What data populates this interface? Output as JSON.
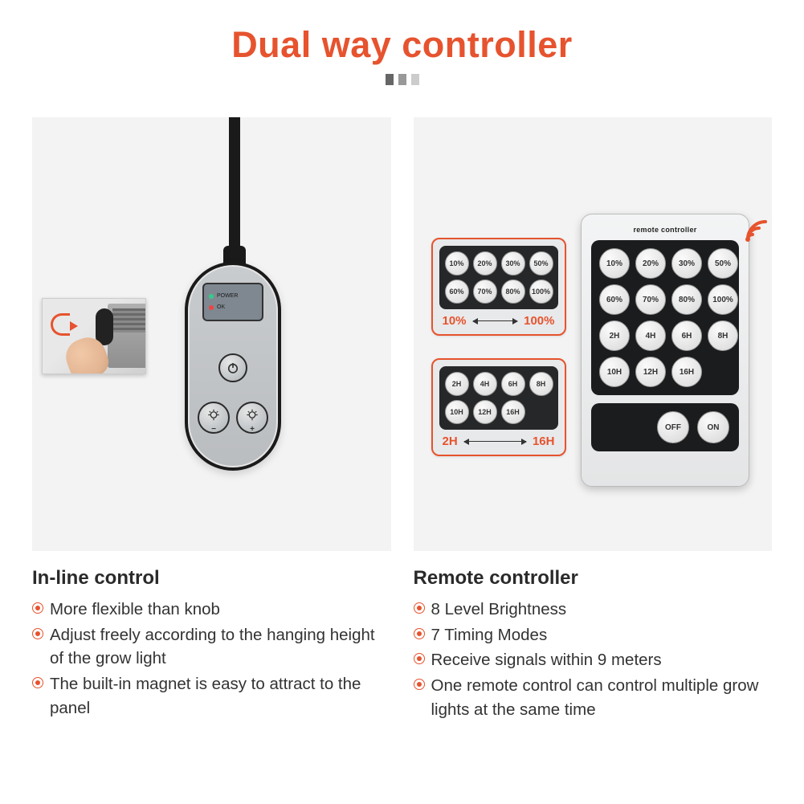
{
  "colors": {
    "accent": "#e6532e",
    "text": "#333333",
    "panel_bg": "#f3f3f3",
    "dark": "#1a1a1a"
  },
  "title": "Dual way controller",
  "inline": {
    "heading": "In-line control",
    "status1": "POWER",
    "status2": "OK",
    "bullets": [
      "More flexible than knob",
      "Adjust freely according to the hanging  height of the grow light",
      "The built-in magnet is easy to attract to the panel"
    ]
  },
  "remote": {
    "heading": "Remote controller",
    "device_title": "remote controller",
    "pct_buttons": [
      "10%",
      "20%",
      "30%",
      "50%",
      "60%",
      "70%",
      "80%",
      "100%"
    ],
    "time_buttons": [
      "2H",
      "4H",
      "6H",
      "8H",
      "10H",
      "12H",
      "16H"
    ],
    "off": "OFF",
    "on": "ON",
    "pct_range_low": "10%",
    "pct_range_high": "100%",
    "time_range_low": "2H",
    "time_range_high": "16H",
    "bullets": [
      "8 Level Brightness",
      "7 Timing Modes",
      "Receive signals within 9 meters",
      "One remote control can control multiple grow lights at the same time"
    ]
  }
}
